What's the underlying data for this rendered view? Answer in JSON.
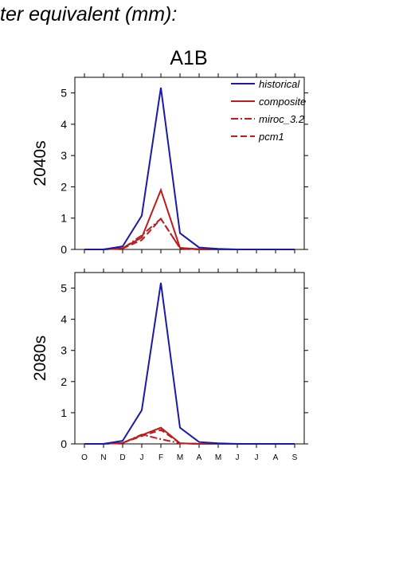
{
  "page_title": "ter equivalent (mm):",
  "chart_data": {
    "type": "line",
    "title": "A1B",
    "categories": [
      "O",
      "N",
      "D",
      "J",
      "F",
      "M",
      "A",
      "M",
      "J",
      "J",
      "A",
      "S"
    ],
    "ylim": [
      0,
      5.5
    ],
    "yticks": [
      0,
      1,
      2,
      3,
      4,
      5
    ],
    "grid": false,
    "legend_position": "top-right",
    "legend": [
      {
        "name": "historical",
        "color": "#1a1aa6",
        "dash": "solid"
      },
      {
        "name": "composite",
        "color": "#bb1c1c",
        "dash": "solid"
      },
      {
        "name": "miroc_3.2",
        "color": "#bb1c1c",
        "dash": "dashdot"
      },
      {
        "name": "pcm1",
        "color": "#bb1c1c",
        "dash": "dash"
      }
    ],
    "panels": [
      {
        "ylabel": "2040s",
        "show_legend": true,
        "series": [
          {
            "name": "historical",
            "values": [
              0.0,
              0.0,
              0.1,
              1.08,
              5.17,
              0.52,
              0.06,
              0.02,
              0.0,
              0.0,
              0.0,
              0.0
            ]
          },
          {
            "name": "composite",
            "values": [
              0.0,
              0.0,
              0.04,
              0.38,
              1.9,
              0.05,
              0.01,
              0.0,
              0.0,
              0.0,
              0.0,
              0.0
            ]
          },
          {
            "name": "miroc_3.2",
            "values": [
              0.0,
              0.0,
              0.03,
              0.45,
              0.98,
              0.04,
              0.0,
              0.0,
              0.0,
              0.0,
              0.0,
              0.0
            ]
          },
          {
            "name": "pcm1",
            "values": [
              0.0,
              0.0,
              0.03,
              0.3,
              0.98,
              0.04,
              0.0,
              0.0,
              0.0,
              0.0,
              0.0,
              0.0
            ]
          }
        ]
      },
      {
        "ylabel": "2080s",
        "show_legend": false,
        "series": [
          {
            "name": "historical",
            "values": [
              0.0,
              0.0,
              0.1,
              1.08,
              5.17,
              0.52,
              0.06,
              0.02,
              0.0,
              0.0,
              0.0,
              0.0
            ]
          },
          {
            "name": "composite",
            "values": [
              0.0,
              0.0,
              0.03,
              0.28,
              0.52,
              0.02,
              0.0,
              0.0,
              0.0,
              0.0,
              0.0,
              0.0
            ]
          },
          {
            "name": "miroc_3.2",
            "values": [
              0.0,
              0.0,
              0.03,
              0.3,
              0.15,
              0.02,
              0.0,
              0.0,
              0.0,
              0.0,
              0.0,
              0.0
            ]
          },
          {
            "name": "pcm1",
            "values": [
              0.0,
              0.0,
              0.03,
              0.25,
              0.45,
              0.02,
              0.0,
              0.0,
              0.0,
              0.0,
              0.0,
              0.0
            ]
          }
        ]
      }
    ]
  }
}
